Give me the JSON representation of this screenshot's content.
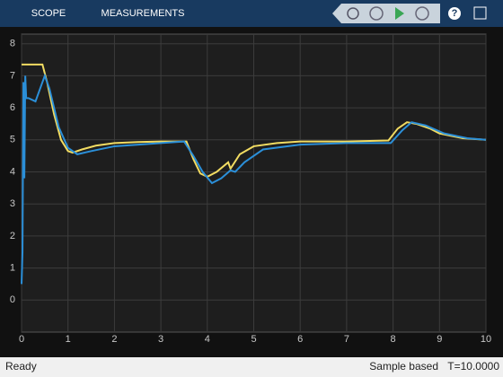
{
  "toolbar": {
    "tabs": [
      "SCOPE",
      "MEASUREMENTS"
    ]
  },
  "chart_data": {
    "type": "line",
    "xlim": [
      0,
      10
    ],
    "xticks": [
      0,
      1,
      2,
      3,
      4,
      5,
      6,
      7,
      8,
      9,
      10
    ],
    "ylim": [
      -1,
      8.3
    ],
    "yticks": [
      0,
      1,
      2,
      3,
      4,
      5,
      6,
      7,
      8
    ],
    "grid": true,
    "series": [
      {
        "color": "#f2dc62",
        "x": [
          0,
          0.45,
          0.55,
          0.7,
          0.85,
          1.0,
          1.1,
          1.3,
          1.6,
          2.0,
          2.5,
          3.0,
          3.55,
          3.7,
          3.85,
          4.0,
          4.2,
          4.45,
          4.5,
          4.7,
          5.0,
          5.5,
          6.0,
          7.0,
          7.9,
          8.1,
          8.3,
          8.5,
          8.8,
          9.0,
          9.5,
          10
        ],
        "values": [
          7.35,
          7.35,
          6.8,
          5.8,
          5.0,
          4.65,
          4.6,
          4.7,
          4.82,
          4.9,
          4.93,
          4.95,
          4.95,
          4.4,
          3.95,
          3.85,
          4.0,
          4.3,
          4.1,
          4.55,
          4.8,
          4.9,
          4.95,
          4.95,
          4.98,
          5.35,
          5.55,
          5.5,
          5.35,
          5.2,
          5.05,
          5.0
        ]
      },
      {
        "color": "#2b8fd8",
        "x": [
          0,
          0.02,
          0.04,
          0.06,
          0.08,
          0.1,
          0.15,
          0.3,
          0.4,
          0.5,
          0.6,
          0.8,
          1.0,
          1.2,
          1.5,
          2.0,
          3.0,
          3.5,
          3.7,
          3.9,
          4.1,
          4.3,
          4.5,
          4.6,
          4.8,
          5.2,
          6.0,
          7.0,
          7.95,
          8.2,
          8.4,
          8.7,
          9.1,
          9.6,
          10
        ],
        "values": [
          0.5,
          1.5,
          6.8,
          3.8,
          7.0,
          6.3,
          6.3,
          6.2,
          6.6,
          7.0,
          6.6,
          5.4,
          4.75,
          4.55,
          4.65,
          4.8,
          4.9,
          4.95,
          4.5,
          4.0,
          3.65,
          3.8,
          4.05,
          4.0,
          4.3,
          4.7,
          4.85,
          4.9,
          4.9,
          5.3,
          5.55,
          5.45,
          5.2,
          5.05,
          5.0
        ]
      }
    ]
  },
  "status": {
    "left": "Ready",
    "mode": "Sample based",
    "time": "T=10.0000"
  }
}
